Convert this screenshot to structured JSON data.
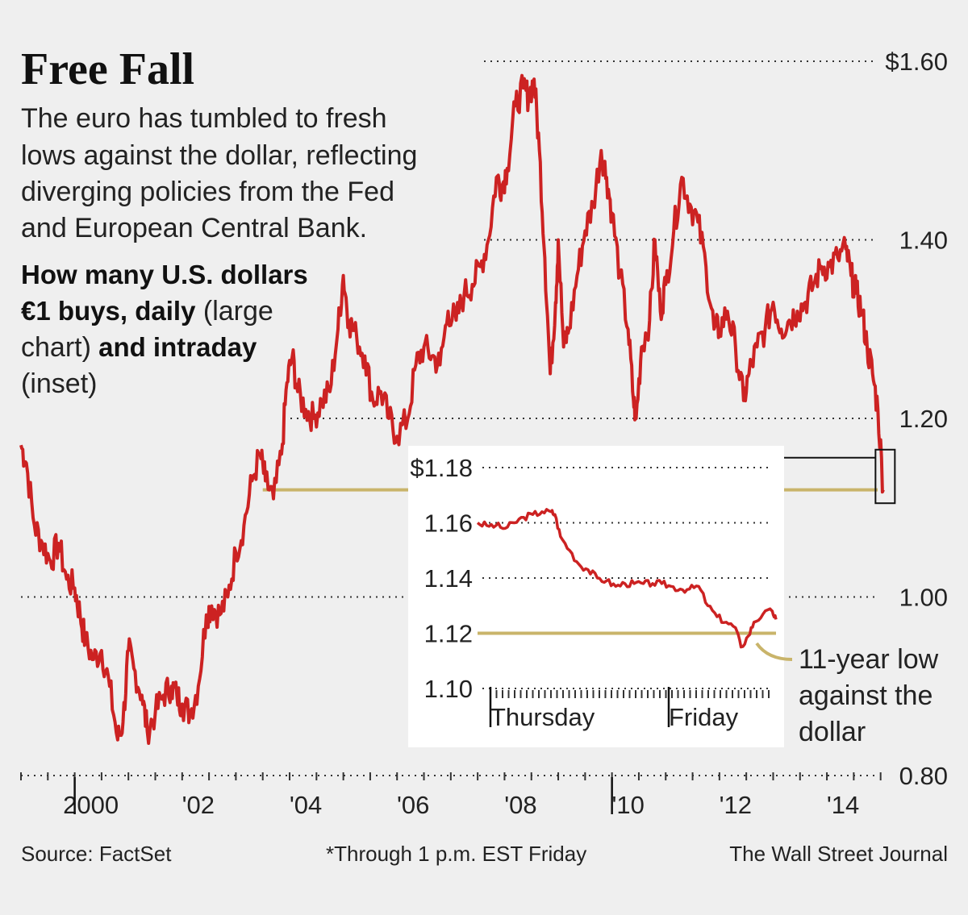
{
  "chart_data": {
    "type": "line",
    "title": "Free Fall",
    "subtitle": "The euro has tumbled to fresh lows against the dollar, reflecting diverging policies from the Fed and European Central Bank.",
    "subtitle_lines": [
      "The euro has tumbled to fresh",
      "lows against the dollar, reflecting",
      "diverging policies from the Fed",
      "and European Central Bank."
    ],
    "description_parts": [
      {
        "text": "How many U.S. dollars",
        "bold": true
      },
      {
        "text": "€1 buys, daily",
        "bold": true
      },
      {
        "text": " (large",
        "bold": false
      },
      {
        "text": "chart)",
        "bold": false
      },
      {
        "text": " and intraday",
        "bold": true
      },
      {
        "text": "(inset)",
        "bold": false
      }
    ],
    "main": {
      "series_name": "USD per EUR, daily",
      "ylim": [
        0.8,
        1.6
      ],
      "xlim": [
        1999.0,
        2015.05
      ],
      "y_ticks": [
        1.6,
        1.4,
        1.2,
        1.0,
        0.8
      ],
      "y_tick_labels": [
        "$1.60",
        "1.40",
        "1.20",
        "1.00",
        "0.80"
      ],
      "x_ticks": [
        2000,
        2002,
        2004,
        2006,
        2008,
        2010,
        2012,
        2014
      ],
      "x_tick_labels": [
        "2000",
        "'02",
        "'04",
        "'06",
        "'08",
        "'10",
        "'12",
        "'14"
      ],
      "year_marker_ticks": [
        2000,
        2010
      ],
      "points": [
        [
          1999.0,
          1.17
        ],
        [
          1999.1,
          1.15
        ],
        [
          1999.25,
          1.08
        ],
        [
          1999.4,
          1.06
        ],
        [
          1999.55,
          1.04
        ],
        [
          1999.7,
          1.06
        ],
        [
          1999.85,
          1.02
        ],
        [
          2000.0,
          1.01
        ],
        [
          2000.1,
          0.98
        ],
        [
          2000.2,
          0.95
        ],
        [
          2000.35,
          0.93
        ],
        [
          2000.5,
          0.94
        ],
        [
          2000.65,
          0.9
        ],
        [
          2000.8,
          0.84
        ],
        [
          2000.9,
          0.86
        ],
        [
          2001.0,
          0.94
        ],
        [
          2001.1,
          0.92
        ],
        [
          2001.25,
          0.89
        ],
        [
          2001.35,
          0.85
        ],
        [
          2001.5,
          0.87
        ],
        [
          2001.65,
          0.89
        ],
        [
          2001.8,
          0.9
        ],
        [
          2001.9,
          0.89
        ],
        [
          2002.0,
          0.88
        ],
        [
          2002.15,
          0.87
        ],
        [
          2002.3,
          0.9
        ],
        [
          2002.45,
          0.98
        ],
        [
          2002.55,
          0.99
        ],
        [
          2002.7,
          0.98
        ],
        [
          2002.85,
          1.0
        ],
        [
          2003.0,
          1.05
        ],
        [
          2003.15,
          1.08
        ],
        [
          2003.3,
          1.13
        ],
        [
          2003.45,
          1.16
        ],
        [
          2003.55,
          1.13
        ],
        [
          2003.7,
          1.11
        ],
        [
          2003.85,
          1.16
        ],
        [
          2003.95,
          1.24
        ],
        [
          2004.05,
          1.27
        ],
        [
          2004.15,
          1.23
        ],
        [
          2004.3,
          1.21
        ],
        [
          2004.45,
          1.2
        ],
        [
          2004.6,
          1.22
        ],
        [
          2004.75,
          1.23
        ],
        [
          2004.9,
          1.3
        ],
        [
          2005.0,
          1.36
        ],
        [
          2005.1,
          1.31
        ],
        [
          2005.25,
          1.29
        ],
        [
          2005.4,
          1.27
        ],
        [
          2005.55,
          1.22
        ],
        [
          2005.7,
          1.23
        ],
        [
          2005.85,
          1.2
        ],
        [
          2006.0,
          1.18
        ],
        [
          2006.2,
          1.2
        ],
        [
          2006.35,
          1.26
        ],
        [
          2006.5,
          1.28
        ],
        [
          2006.65,
          1.27
        ],
        [
          2006.8,
          1.26
        ],
        [
          2006.95,
          1.32
        ],
        [
          2007.1,
          1.31
        ],
        [
          2007.25,
          1.34
        ],
        [
          2007.4,
          1.35
        ],
        [
          2007.55,
          1.37
        ],
        [
          2007.7,
          1.4
        ],
        [
          2007.85,
          1.47
        ],
        [
          2007.95,
          1.46
        ],
        [
          2008.05,
          1.48
        ],
        [
          2008.2,
          1.55
        ],
        [
          2008.35,
          1.57
        ],
        [
          2008.45,
          1.56
        ],
        [
          2008.55,
          1.58
        ],
        [
          2008.65,
          1.5
        ],
        [
          2008.75,
          1.38
        ],
        [
          2008.85,
          1.25
        ],
        [
          2008.95,
          1.33
        ],
        [
          2009.0,
          1.4
        ],
        [
          2009.1,
          1.28
        ],
        [
          2009.2,
          1.3
        ],
        [
          2009.35,
          1.36
        ],
        [
          2009.5,
          1.41
        ],
        [
          2009.65,
          1.44
        ],
        [
          2009.8,
          1.5
        ],
        [
          2009.9,
          1.47
        ],
        [
          2010.0,
          1.43
        ],
        [
          2010.15,
          1.36
        ],
        [
          2010.3,
          1.3
        ],
        [
          2010.4,
          1.22
        ],
        [
          2010.45,
          1.2
        ],
        [
          2010.55,
          1.28
        ],
        [
          2010.7,
          1.31
        ],
        [
          2010.8,
          1.4
        ],
        [
          2010.9,
          1.32
        ],
        [
          2011.0,
          1.35
        ],
        [
          2011.15,
          1.41
        ],
        [
          2011.3,
          1.47
        ],
        [
          2011.45,
          1.44
        ],
        [
          2011.6,
          1.42
        ],
        [
          2011.75,
          1.37
        ],
        [
          2011.9,
          1.3
        ],
        [
          2012.0,
          1.3
        ],
        [
          2012.15,
          1.32
        ],
        [
          2012.3,
          1.28
        ],
        [
          2012.45,
          1.22
        ],
        [
          2012.55,
          1.25
        ],
        [
          2012.7,
          1.28
        ],
        [
          2012.85,
          1.3
        ],
        [
          2013.0,
          1.33
        ],
        [
          2013.15,
          1.3
        ],
        [
          2013.3,
          1.31
        ],
        [
          2013.45,
          1.32
        ],
        [
          2013.6,
          1.33
        ],
        [
          2013.75,
          1.35
        ],
        [
          2013.9,
          1.37
        ],
        [
          2014.05,
          1.37
        ],
        [
          2014.2,
          1.38
        ],
        [
          2014.35,
          1.39
        ],
        [
          2014.45,
          1.36
        ],
        [
          2014.55,
          1.34
        ],
        [
          2014.65,
          1.32
        ],
        [
          2014.75,
          1.28
        ],
        [
          2014.85,
          1.25
        ],
        [
          2014.95,
          1.21
        ],
        [
          2015.05,
          1.12
        ]
      ]
    },
    "low_reference": {
      "value": 1.12,
      "label_lines": [
        "11-year low",
        "against the",
        "dollar"
      ]
    },
    "inset": {
      "type": "line",
      "series_name": "USD per EUR, intraday",
      "ylim": [
        1.1,
        1.18
      ],
      "y_ticks": [
        1.18,
        1.16,
        1.14,
        1.12,
        1.1
      ],
      "y_tick_labels": [
        "$1.18",
        "1.16",
        "1.14",
        "1.12",
        "1.10"
      ],
      "day_labels": [
        "Thursday",
        "Friday"
      ],
      "day_positions": [
        0.0,
        1.0
      ],
      "xlim": [
        0.0,
        1.62
      ],
      "points": [
        [
          0.0,
          1.16
        ],
        [
          0.05,
          1.159
        ],
        [
          0.1,
          1.159
        ],
        [
          0.15,
          1.158
        ],
        [
          0.2,
          1.16
        ],
        [
          0.25,
          1.162
        ],
        [
          0.3,
          1.163
        ],
        [
          0.35,
          1.164
        ],
        [
          0.4,
          1.164
        ],
        [
          0.42,
          1.163
        ],
        [
          0.45,
          1.155
        ],
        [
          0.5,
          1.15
        ],
        [
          0.55,
          1.145
        ],
        [
          0.6,
          1.143
        ],
        [
          0.65,
          1.14
        ],
        [
          0.7,
          1.139
        ],
        [
          0.75,
          1.137
        ],
        [
          0.8,
          1.138
        ],
        [
          0.85,
          1.138
        ],
        [
          0.9,
          1.138
        ],
        [
          0.95,
          1.138
        ],
        [
          1.0,
          1.138
        ],
        [
          1.05,
          1.137
        ],
        [
          1.1,
          1.136
        ],
        [
          1.15,
          1.136
        ],
        [
          1.2,
          1.137
        ],
        [
          1.25,
          1.13
        ],
        [
          1.3,
          1.126
        ],
        [
          1.35,
          1.124
        ],
        [
          1.4,
          1.122
        ],
        [
          1.43,
          1.115
        ],
        [
          1.47,
          1.119
        ],
        [
          1.5,
          1.124
        ],
        [
          1.55,
          1.127
        ],
        [
          1.6,
          1.128
        ],
        [
          1.62,
          1.125
        ]
      ],
      "reference_value": 1.12
    },
    "source": "Source: FactSet",
    "note": "*Through 1 p.m. EST Friday",
    "credit": "The Wall Street Journal",
    "colors": {
      "line": "#cc2222",
      "reference": "#c9b46a",
      "background": "#efefef",
      "inset_background": "#ffffff",
      "text": "#1a1a1a",
      "grid": "#333333"
    }
  }
}
